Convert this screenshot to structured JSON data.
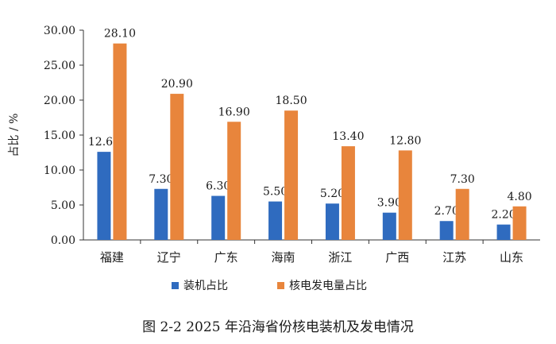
{
  "chart_data": {
    "type": "bar",
    "ylabel": "占比 / %",
    "ylim": [
      0,
      30
    ],
    "yticks": [
      "0.00",
      "5.00",
      "10.00",
      "15.00",
      "20.00",
      "25.00",
      "30.00"
    ],
    "categories": [
      "福建",
      "辽宁",
      "广东",
      "海南",
      "浙江",
      "广西",
      "江苏",
      "山东"
    ],
    "series": [
      {
        "name": "装机占比",
        "color": "#2f6bbf",
        "values": [
          12.6,
          7.3,
          6.3,
          5.5,
          5.2,
          3.9,
          2.7,
          2.2
        ],
        "labels": [
          "12.60",
          "7.30",
          "6.30",
          "5.50",
          "5.20",
          "3.90",
          "2.70",
          "2.20"
        ]
      },
      {
        "name": "核电发电量占比",
        "color": "#e8853c",
        "values": [
          28.1,
          20.9,
          16.9,
          18.5,
          13.4,
          12.8,
          7.3,
          4.8
        ],
        "labels": [
          "28.10",
          "20.90",
          "16.90",
          "18.50",
          "13.40",
          "12.80",
          "7.30",
          "4.80"
        ]
      }
    ],
    "legend": "bottom",
    "grid": false
  },
  "caption": "图 2-2 2025 年沿海省份核电装机及发电情况"
}
